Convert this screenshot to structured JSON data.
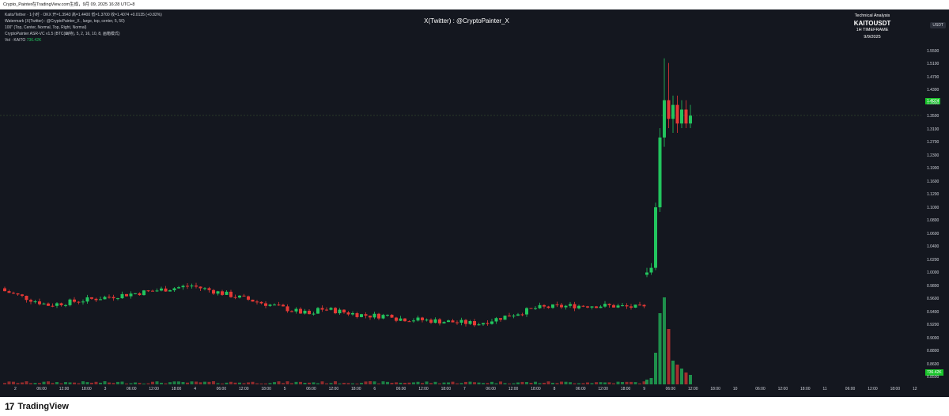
{
  "titlebar": {
    "text": "Crypto_Painter在TradingView.com⽣成，9⽉ 09, 2025 16:28 UTC+8"
  },
  "legend": {
    "line1": "Kaito/Tether · 1小时 · OKX  开=1.3943  高=1.4400  低=1.3700  收=1.4074  +0.0135 (+0.82%)",
    "line2": "Watermark (X(Twitter) : @CryptoPainter_X , large, top, center, 5, 50)",
    "line3": "100\" (Top, Center, Normal, Top, Right, Normal)",
    "line4": "CryptoPainter ASR-VC v1.5 (BTC(幽特), 5, 2, 16, 10, 8, 画箱模式)",
    "line5_prefix": "Vol · KAITO",
    "line5_value": "736.42K"
  },
  "watermark": {
    "text": "X(Twitter) : @CryptoPainter_X"
  },
  "technical_box": {
    "title": "Technical Analysis",
    "symbol": "KAITOUSDT",
    "timeframe": "1H TIMEFRAME",
    "date": "9/9/2025"
  },
  "axis": {
    "currency": "USDT",
    "price_labels": [
      "1.5500",
      "1.5100",
      "1.4700",
      "1.4300",
      "1.3900",
      "1.3500",
      "1.3100",
      "1.2700",
      "1.2300",
      "1.1900",
      "1.1600",
      "1.1200",
      "1.1000",
      "1.0800",
      "1.0600",
      "1.0400",
      "1.0200",
      "1.0000",
      "0.9800",
      "0.9600",
      "0.9400",
      "0.9200",
      "0.9000",
      "0.8800",
      "0.8600",
      "0.8500"
    ],
    "time_labels": [
      "2",
      "06:00",
      "12:00",
      "18:00",
      "3",
      "06:00",
      "12:00",
      "18:00",
      "4",
      "06:00",
      "12:00",
      "18:00",
      "5",
      "06:00",
      "12:00",
      "18:00",
      "6",
      "06:00",
      "12:00",
      "18:00",
      "7",
      "06:00",
      "12:00",
      "18:00",
      "8",
      "06:00",
      "12:00",
      "18:00",
      "9",
      "06:00",
      "12:00",
      "18:00",
      "10",
      "06:00",
      "12:00",
      "18:00",
      "11",
      "06:00",
      "12:00",
      "18:00",
      "12"
    ],
    "current_price": "1.4074",
    "current_volume": "736.42K"
  },
  "colors": {
    "up": "#22c55e",
    "down": "#e53935",
    "bg": "#14171f"
  },
  "branding": {
    "name": "TradingView"
  }
}
